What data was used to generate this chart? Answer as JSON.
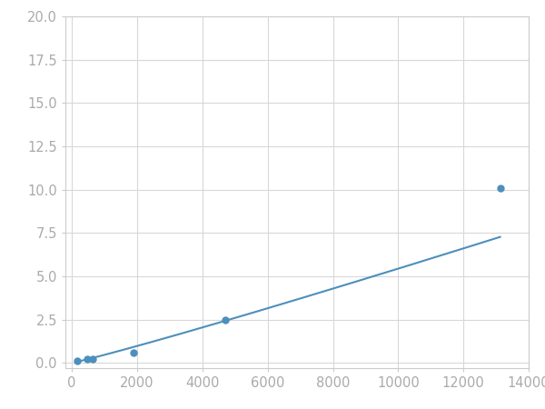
{
  "x": [
    156,
    469,
    625,
    1875,
    4688,
    13125
  ],
  "y": [
    0.1,
    0.2,
    0.2,
    0.6,
    2.5,
    10.1
  ],
  "line_color": "#4d8fbc",
  "marker_color": "#4d8fbc",
  "marker_size": 5,
  "line_width": 1.5,
  "xlim": [
    -200,
    14000
  ],
  "ylim": [
    -0.3,
    20.0
  ],
  "xticks": [
    0,
    2000,
    4000,
    6000,
    8000,
    10000,
    12000,
    14000
  ],
  "yticks": [
    0.0,
    2.5,
    5.0,
    7.5,
    10.0,
    12.5,
    15.0,
    17.5,
    20.0
  ],
  "grid_color": "#d8d8d8",
  "background_color": "#ffffff",
  "tick_fontsize": 10.5,
  "tick_color": "#aaaaaa",
  "spine_color": "#cccccc"
}
